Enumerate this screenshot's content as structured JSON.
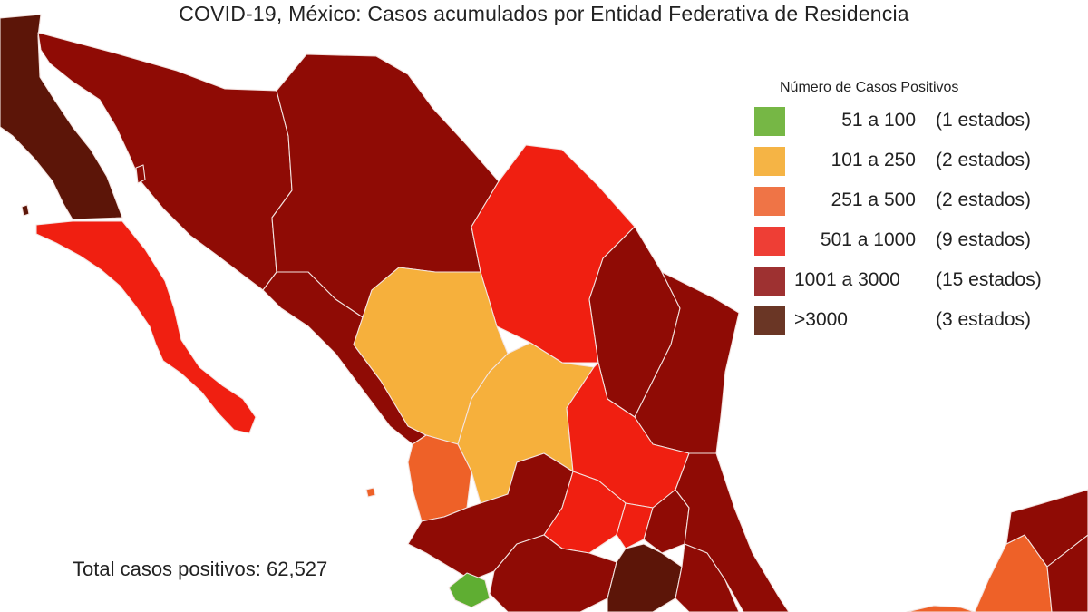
{
  "title": "COVID-19, México: Casos acumulados por Entidad Federativa de Residencia",
  "legend": {
    "title": "Número de Casos Positivos",
    "items": [
      {
        "range": "51 a 100",
        "count": "(1 estados)",
        "color": "#76b745"
      },
      {
        "range": "101 a 250",
        "count": "(2 estados)",
        "color": "#f5b445"
      },
      {
        "range": "251 a 500",
        "count": "(2 estados)",
        "color": "#ef7446"
      },
      {
        "range": "501 a 1000",
        "count": "(9 estados)",
        "color": "#ee3e35"
      },
      {
        "range": "1001 a 3000",
        "count": "(15 estados)",
        "color": "#9e3131"
      },
      {
        "range": ">3000",
        "count": "(3 estados)",
        "color": "#6a3625"
      }
    ]
  },
  "total": "Total casos positivos: 62,527",
  "map_colors": {
    "dark_red": "#8f0b05",
    "red": "#f01f11",
    "orange_yellow": "#f6b03c",
    "orange": "#ee6128",
    "green": "#5fae32",
    "dark_brown": "#5c1508"
  }
}
